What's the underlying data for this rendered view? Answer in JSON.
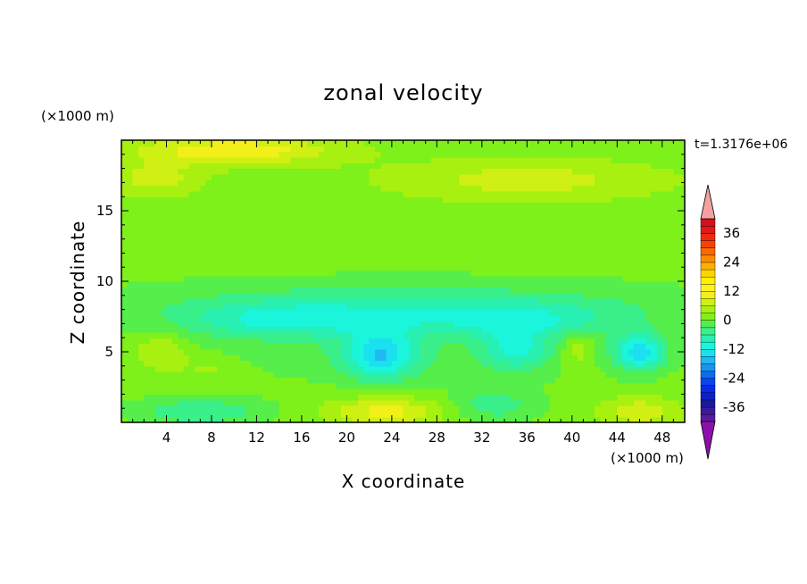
{
  "chart_data": {
    "type": "heatmap",
    "title": "zonal velocity",
    "xlabel": "X coordinate",
    "ylabel": "Z coordinate",
    "x_unit": "(×1000 m)",
    "y_unit": "(×1000 m)",
    "time_label": "t=1.3176e+06",
    "xlim": [
      0,
      50
    ],
    "ylim": [
      0,
      20
    ],
    "x_ticks": [
      4,
      8,
      12,
      16,
      20,
      24,
      28,
      32,
      36,
      40,
      44,
      48
    ],
    "y_ticks": [
      5,
      10,
      15
    ],
    "colorbar": {
      "levels": [
        -42,
        -39,
        -36,
        -33,
        -30,
        -27,
        -24,
        -21,
        -18,
        -15,
        -12,
        -9,
        -6,
        -3,
        0,
        3,
        6,
        9,
        12,
        15,
        18,
        21,
        24,
        27,
        30,
        33,
        36,
        39,
        42
      ],
      "colors": [
        "#5a1aa0",
        "#3a1a9a",
        "#1a1aa0",
        "#0f1fc8",
        "#0a2ae6",
        "#0a45f0",
        "#0a6cf0",
        "#1a94ee",
        "#22b8f2",
        "#1ae0f0",
        "#1af5dc",
        "#28f0b2",
        "#3af08a",
        "#56ee4a",
        "#7ef01a",
        "#a8f010",
        "#cff012",
        "#f2f018",
        "#fff020",
        "#fff000",
        "#fdd400",
        "#fcb000",
        "#fb8c00",
        "#fa6a00",
        "#f64400",
        "#ec2a10",
        "#e01818",
        "#d4101a"
      ],
      "labels": [
        36,
        24,
        12,
        0,
        -12,
        -24,
        -36
      ],
      "over_color": "#f5a0a0",
      "under_color": "#8c10a8"
    },
    "background_value": 1.5,
    "features": [
      {
        "x": 10,
        "z": 19.3,
        "rx": 9,
        "rz": 1.0,
        "value": 10
      },
      {
        "x": 36,
        "z": 17.2,
        "rx": 12,
        "rz": 1.4,
        "value": 6
      },
      {
        "x": 3,
        "z": 17.3,
        "rx": 4,
        "rz": 1.2,
        "value": 6
      },
      {
        "x": 25,
        "z": 10.0,
        "rx": 25,
        "rz": 0.9,
        "value": -2
      },
      {
        "x": 25,
        "z": 8.5,
        "rx": 25,
        "rz": 1.2,
        "value": -6
      },
      {
        "x": 15,
        "z": 7.2,
        "rx": 10,
        "rz": 1.2,
        "value": -10
      },
      {
        "x": 35,
        "z": 7.2,
        "rx": 10,
        "rz": 1.2,
        "value": -9
      },
      {
        "x": 25,
        "z": 5.0,
        "rx": 25,
        "rz": 2.5,
        "value": -3
      },
      {
        "x": 23,
        "z": 4.8,
        "rx": 3.2,
        "rz": 1.7,
        "value": -14
      },
      {
        "x": 46,
        "z": 5.0,
        "rx": 2.2,
        "rz": 1.3,
        "value": -14
      },
      {
        "x": 35,
        "z": 5.2,
        "rx": 3,
        "rz": 1.4,
        "value": -9
      },
      {
        "x": 3.5,
        "z": 5.0,
        "rx": 2.4,
        "rz": 1.3,
        "value": 6
      },
      {
        "x": 8.0,
        "z": 3.8,
        "rx": 3.0,
        "rz": 1.0,
        "value": 3
      },
      {
        "x": 40.5,
        "z": 5.2,
        "rx": 1.5,
        "rz": 1.3,
        "value": 5
      },
      {
        "x": 23.5,
        "z": 0.8,
        "rx": 5,
        "rz": 1.0,
        "value": 9
      },
      {
        "x": 46,
        "z": 0.8,
        "rx": 3.5,
        "rz": 1.0,
        "value": 7
      },
      {
        "x": 7,
        "z": 0.8,
        "rx": 6,
        "rz": 1.0,
        "value": -7
      },
      {
        "x": 33,
        "z": 1.2,
        "rx": 4,
        "rz": 1.2,
        "value": -6
      }
    ]
  }
}
